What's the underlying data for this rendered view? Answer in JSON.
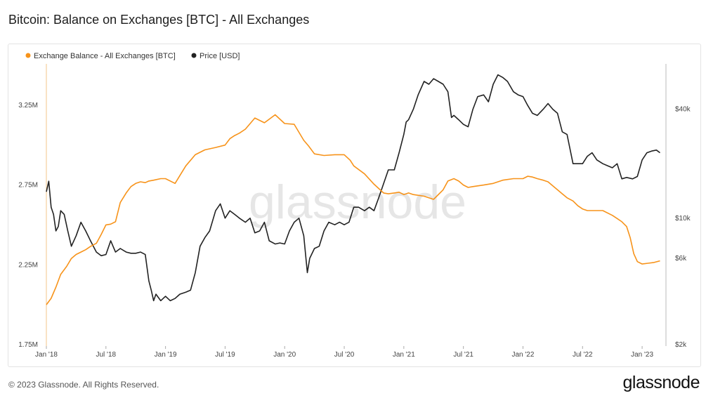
{
  "title": "Bitcoin: Balance on Exchanges [BTC] - All Exchanges",
  "footer": {
    "copyright": "© 2023 Glassnode. All Rights Reserved.",
    "brand": "glassnode"
  },
  "watermark": "glassnode",
  "colors": {
    "balance": "#f7931a",
    "price": "#222222",
    "grid": "#eeeeee",
    "watermark": "#e6e6e6"
  },
  "chart_data": {
    "type": "line",
    "legend": [
      "Exchange Balance - All Exchanges [BTC]",
      "Price [USD]"
    ],
    "legend_placement": "top-left",
    "x_ticks": [
      "Jan '18",
      "Jul '18",
      "Jan '19",
      "Jul '19",
      "Jan '20",
      "Jul '20",
      "Jan '21",
      "Jul '21",
      "Jan '22",
      "Jul '22",
      "Jan '23"
    ],
    "x_range": [
      2018.0,
      2023.2
    ],
    "y_left": {
      "ticks": [
        "1.75M",
        "2.25M",
        "2.75M",
        "3.25M"
      ],
      "tick_values": [
        1750000,
        2250000,
        2750000,
        3250000
      ],
      "range": [
        1750000,
        3500000
      ]
    },
    "y_right": {
      "scale": "log",
      "ticks": [
        "$2k",
        "$6k",
        "$10k",
        "$40k"
      ],
      "tick_values": [
        2000,
        6000,
        10000,
        40000
      ],
      "range": [
        2000,
        70000
      ]
    },
    "series": [
      {
        "name": "Exchange Balance - All Exchanges [BTC]",
        "axis": "left",
        "x": [
          2018.0,
          2018.04,
          2018.08,
          2018.12,
          2018.17,
          2018.21,
          2018.25,
          2018.29,
          2018.33,
          2018.37,
          2018.42,
          2018.46,
          2018.5,
          2018.54,
          2018.58,
          2018.62,
          2018.67,
          2018.71,
          2018.75,
          2018.79,
          2018.83,
          2018.86,
          2018.9,
          2018.96,
          2019.0,
          2019.08,
          2019.17,
          2019.25,
          2019.33,
          2019.42,
          2019.5,
          2019.54,
          2019.58,
          2019.62,
          2019.67,
          2019.75,
          2019.83,
          2019.92,
          2020.0,
          2020.08,
          2020.12,
          2020.16,
          2020.2,
          2020.25,
          2020.33,
          2020.42,
          2020.5,
          2020.55,
          2020.58,
          2020.67,
          2020.75,
          2020.83,
          2020.87,
          2020.92,
          2020.96,
          2021.0,
          2021.04,
          2021.08,
          2021.17,
          2021.25,
          2021.33,
          2021.37,
          2021.42,
          2021.46,
          2021.5,
          2021.54,
          2021.58,
          2021.67,
          2021.75,
          2021.83,
          2021.92,
          2022.0,
          2022.04,
          2022.08,
          2022.12,
          2022.17,
          2022.21,
          2022.25,
          2022.29,
          2022.33,
          2022.37,
          2022.42,
          2022.46,
          2022.5,
          2022.54,
          2022.58,
          2022.67,
          2022.75,
          2022.79,
          2022.83,
          2022.87,
          2022.9,
          2022.93,
          2022.96,
          2023.0,
          2023.05,
          2023.1,
          2023.15
        ],
        "values": [
          2000000,
          2040000,
          2110000,
          2190000,
          2240000,
          2290000,
          2315000,
          2330000,
          2345000,
          2365000,
          2385000,
          2440000,
          2500000,
          2505000,
          2520000,
          2640000,
          2700000,
          2740000,
          2760000,
          2770000,
          2765000,
          2775000,
          2780000,
          2790000,
          2790000,
          2760000,
          2870000,
          2940000,
          2970000,
          2985000,
          3000000,
          3040000,
          3060000,
          3075000,
          3100000,
          3170000,
          3140000,
          3190000,
          3135000,
          3130000,
          3080000,
          3030000,
          2995000,
          2945000,
          2935000,
          2940000,
          2940000,
          2905000,
          2870000,
          2820000,
          2755000,
          2700000,
          2695000,
          2700000,
          2705000,
          2690000,
          2700000,
          2690000,
          2680000,
          2660000,
          2720000,
          2775000,
          2790000,
          2775000,
          2750000,
          2735000,
          2740000,
          2750000,
          2760000,
          2780000,
          2790000,
          2790000,
          2805000,
          2800000,
          2790000,
          2780000,
          2770000,
          2745000,
          2720000,
          2695000,
          2670000,
          2650000,
          2620000,
          2600000,
          2590000,
          2590000,
          2590000,
          2560000,
          2540000,
          2520000,
          2490000,
          2420000,
          2320000,
          2270000,
          2255000,
          2260000,
          2265000,
          2275000
        ]
      },
      {
        "name": "Price [USD]",
        "axis": "right",
        "x": [
          2018.0,
          2018.02,
          2018.04,
          2018.06,
          2018.08,
          2018.1,
          2018.12,
          2018.15,
          2018.18,
          2018.21,
          2018.25,
          2018.29,
          2018.33,
          2018.37,
          2018.42,
          2018.46,
          2018.5,
          2018.54,
          2018.58,
          2018.62,
          2018.67,
          2018.71,
          2018.75,
          2018.79,
          2018.83,
          2018.86,
          2018.88,
          2018.9,
          2018.92,
          2018.96,
          2019.0,
          2019.04,
          2019.08,
          2019.12,
          2019.17,
          2019.21,
          2019.25,
          2019.29,
          2019.33,
          2019.37,
          2019.42,
          2019.46,
          2019.5,
          2019.54,
          2019.58,
          2019.62,
          2019.67,
          2019.71,
          2019.75,
          2019.79,
          2019.83,
          2019.87,
          2019.92,
          2019.96,
          2020.0,
          2020.04,
          2020.08,
          2020.12,
          2020.16,
          2020.19,
          2020.21,
          2020.25,
          2020.29,
          2020.33,
          2020.37,
          2020.42,
          2020.46,
          2020.5,
          2020.54,
          2020.58,
          2020.62,
          2020.67,
          2020.71,
          2020.75,
          2020.79,
          2020.83,
          2020.87,
          2020.92,
          2020.96,
          2021.0,
          2021.02,
          2021.04,
          2021.08,
          2021.12,
          2021.17,
          2021.21,
          2021.25,
          2021.29,
          2021.33,
          2021.37,
          2021.4,
          2021.42,
          2021.46,
          2021.5,
          2021.54,
          2021.58,
          2021.62,
          2021.67,
          2021.71,
          2021.75,
          2021.79,
          2021.83,
          2021.87,
          2021.92,
          2021.96,
          2022.0,
          2022.04,
          2022.08,
          2022.12,
          2022.17,
          2022.21,
          2022.25,
          2022.29,
          2022.33,
          2022.37,
          2022.42,
          2022.46,
          2022.5,
          2022.54,
          2022.58,
          2022.62,
          2022.67,
          2022.71,
          2022.75,
          2022.79,
          2022.83,
          2022.87,
          2022.92,
          2022.96,
          2023.0,
          2023.04,
          2023.08,
          2023.12,
          2023.15
        ],
        "values": [
          14000,
          16000,
          11500,
          10500,
          8500,
          9000,
          11000,
          10500,
          8500,
          7000,
          8000,
          9500,
          8500,
          7500,
          6500,
          6200,
          6300,
          7500,
          6500,
          6800,
          6500,
          6400,
          6400,
          6500,
          6300,
          4500,
          4000,
          3500,
          3800,
          3500,
          3700,
          3500,
          3600,
          3800,
          3900,
          4000,
          5000,
          7000,
          7800,
          8500,
          11000,
          12000,
          10000,
          11000,
          10500,
          10000,
          9500,
          10000,
          8300,
          8500,
          9500,
          7500,
          7200,
          7300,
          7200,
          8500,
          9500,
          10000,
          8000,
          5000,
          6000,
          6800,
          7000,
          8500,
          9500,
          9200,
          9500,
          9200,
          9500,
          11500,
          11500,
          11000,
          11500,
          11000,
          13000,
          15500,
          18500,
          18500,
          23000,
          29000,
          34000,
          35000,
          40000,
          48000,
          57000,
          55000,
          59000,
          57000,
          55000,
          50000,
          36000,
          37000,
          35000,
          33000,
          32000,
          40000,
          47000,
          48000,
          44000,
          55000,
          62000,
          60000,
          57000,
          50000,
          48000,
          47000,
          42000,
          38000,
          37000,
          40000,
          43000,
          40000,
          38000,
          30000,
          29000,
          20000,
          20000,
          20000,
          22000,
          23000,
          21000,
          20000,
          19500,
          19000,
          20000,
          16500,
          16800,
          16500,
          17000,
          21000,
          23000,
          23500,
          23800,
          23000
        ]
      }
    ]
  }
}
